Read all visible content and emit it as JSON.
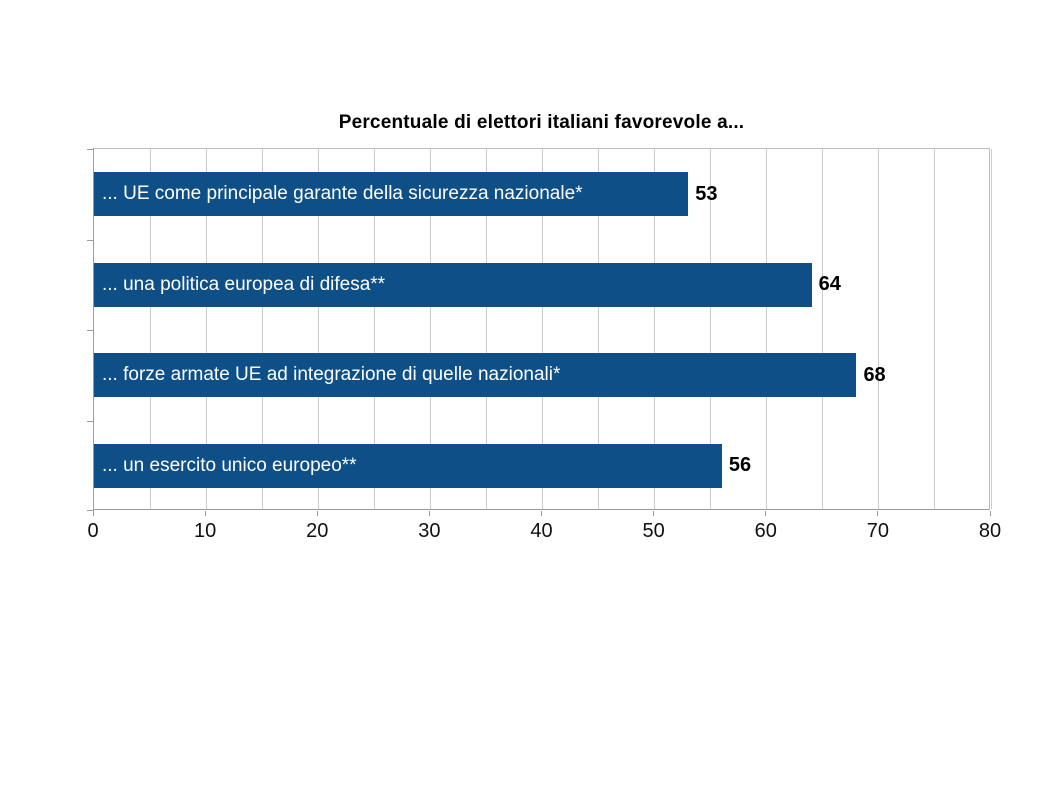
{
  "chart_data": {
    "type": "bar",
    "orientation": "horizontal",
    "title": "Percentuale di elettori italiani favorevole a...",
    "categories": [
      "... UE come principale garante della sicurezza nazionale*",
      "... una politica europea di difesa**",
      "... forze armate UE ad integrazione di quelle nazionali*",
      "... un esercito unico europeo**"
    ],
    "values": [
      53,
      64,
      68,
      56
    ],
    "xlabel": "",
    "ylabel": "",
    "xlim": [
      0,
      80
    ],
    "x_ticks": [
      0,
      10,
      20,
      30,
      40,
      50,
      60,
      70,
      80
    ],
    "minor_grid_step": 5,
    "grid": true,
    "legend": "none",
    "bar_color": "#0e4f87",
    "bar_label_color": "#ffffff",
    "value_label_color": "#000000",
    "background_color": "#ffffff"
  }
}
